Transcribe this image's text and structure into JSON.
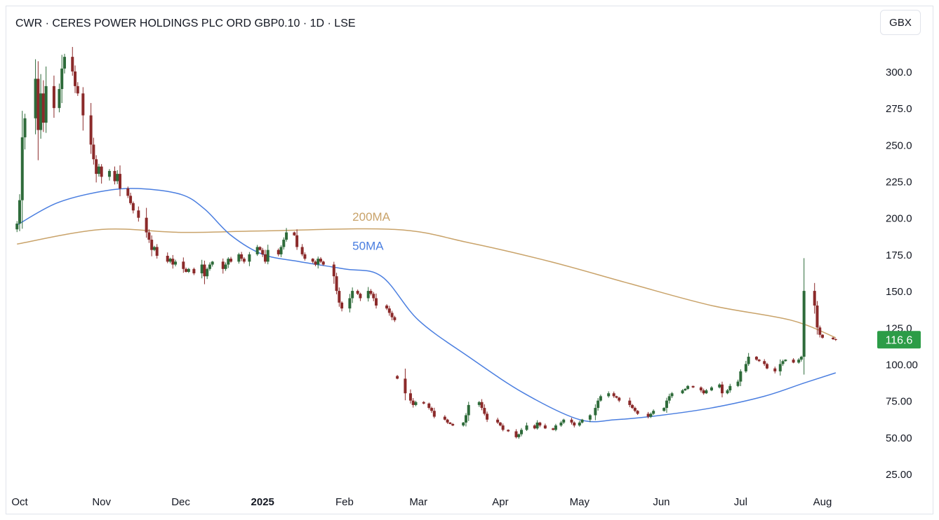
{
  "chart_data": {
    "type": "candlestick",
    "title": "CWR · CERES POWER HOLDINGS PLC ORD GBP0.10 · 1D · LSE",
    "currency": "GBX",
    "ylim": [
      10,
      320
    ],
    "y_ticks": [
      "25.00",
      "50.00",
      "75.00",
      "100.00",
      "125.0",
      "150.0",
      "175.0",
      "200.0",
      "225.0",
      "250.0",
      "275.0",
      "300.0"
    ],
    "y_tick_values": [
      25,
      50,
      75,
      100,
      125,
      150,
      175,
      200,
      225,
      250,
      275,
      300
    ],
    "x_ticks": [
      {
        "label": "Oct",
        "date": "2024-10-01",
        "bold": false
      },
      {
        "label": "Nov",
        "date": "2024-11-01",
        "bold": false
      },
      {
        "label": "Dec",
        "date": "2024-12-01",
        "bold": false
      },
      {
        "label": "2025",
        "date": "2025-01-01",
        "bold": true
      },
      {
        "label": "Feb",
        "date": "2025-02-01",
        "bold": false
      },
      {
        "label": "Mar",
        "date": "2025-03-01",
        "bold": false
      },
      {
        "label": "Apr",
        "date": "2025-04-01",
        "bold": false
      },
      {
        "label": "May",
        "date": "2025-05-01",
        "bold": false
      },
      {
        "label": "Jun",
        "date": "2025-06-01",
        "bold": false
      },
      {
        "label": "Jul",
        "date": "2025-07-01",
        "bold": false
      },
      {
        "label": "Aug",
        "date": "2025-08-01",
        "bold": false
      }
    ],
    "last_price": "116.6",
    "last_price_value": 116.6,
    "colors": {
      "up": "#2e6b3a",
      "down": "#8b2a2a",
      "ma50": "#4a7ee0",
      "ma200": "#c9a36a",
      "last_price_bg": "#2c9c47",
      "text": "#131722",
      "frame": "#e0e3eb"
    },
    "grid": false,
    "candle_segments": [
      {
        "start": "2024-09-30",
        "end": "2025-02-20",
        "closes": [
          196,
          212,
          255,
          268,
          295,
          260,
          285,
          265,
          290,
          275,
          288,
          302,
          310,
          300,
          290,
          285,
          270,
          250,
          240,
          230,
          235,
          228,
          232,
          225,
          230,
          220,
          215,
          210,
          205,
          200,
          190,
          185,
          178,
          180,
          174,
          170,
          172,
          168,
          170,
          165,
          163,
          165,
          162,
          168,
          160,
          165,
          168,
          170,
          165,
          168,
          172,
          170,
          175,
          172,
          170,
          175,
          180,
          178,
          175,
          170,
          178,
          175,
          180,
          185,
          190,
          188,
          180,
          175,
          172,
          170,
          168,
          172,
          170,
          168,
          160,
          150,
          142,
          138,
          145,
          150,
          148,
          145,
          150,
          148,
          145,
          140,
          138,
          135,
          132,
          130
        ]
      },
      {
        "start": "2025-02-21",
        "end": "2025-08-06",
        "closes": [
          90,
          80,
          75,
          72,
          74,
          73,
          70,
          68,
          64,
          62,
          60,
          59,
          58,
          60,
          65,
          72,
          74,
          70,
          66,
          62,
          60,
          58,
          55,
          54,
          50,
          52,
          55,
          58,
          56,
          60,
          58,
          56,
          55,
          58,
          60,
          62,
          60,
          58,
          60,
          62,
          65,
          70,
          75,
          78,
          80,
          78,
          77,
          75,
          72,
          70,
          68,
          66,
          64,
          66,
          68,
          70,
          75,
          78,
          80,
          82,
          83,
          85,
          84,
          82,
          80,
          82,
          84,
          86,
          80,
          82,
          85,
          88,
          95,
          100,
          105,
          103,
          102,
          100,
          97,
          95,
          100,
          102,
          103,
          101,
          103,
          105,
          150,
          140,
          125,
          120,
          118,
          117,
          116.6
        ]
      }
    ],
    "ma50": {
      "label": "50MA",
      "label_date": "2025-02-04",
      "label_value": 178,
      "points": [
        [
          "2024-09-30",
          195
        ],
        [
          "2024-10-15",
          210
        ],
        [
          "2024-11-01",
          218
        ],
        [
          "2024-11-15",
          220
        ],
        [
          "2024-12-01",
          216
        ],
        [
          "2024-12-10",
          206
        ],
        [
          "2024-12-20",
          188
        ],
        [
          "2025-01-01",
          175
        ],
        [
          "2025-01-15",
          170
        ],
        [
          "2025-02-01",
          165
        ],
        [
          "2025-02-15",
          160
        ],
        [
          "2025-03-01",
          130
        ],
        [
          "2025-03-20",
          105
        ],
        [
          "2025-04-10",
          80
        ],
        [
          "2025-05-01",
          62
        ],
        [
          "2025-05-15",
          62
        ],
        [
          "2025-06-01",
          65
        ],
        [
          "2025-06-20",
          70
        ],
        [
          "2025-07-10",
          78
        ],
        [
          "2025-07-25",
          87
        ],
        [
          "2025-08-06",
          94
        ]
      ]
    },
    "ma200": {
      "label": "200MA",
      "label_date": "2025-02-04",
      "label_value": 198,
      "points": [
        [
          "2024-09-30",
          182
        ],
        [
          "2024-11-01",
          192
        ],
        [
          "2024-12-01",
          190
        ],
        [
          "2025-01-01",
          191
        ],
        [
          "2025-02-20",
          192
        ],
        [
          "2025-03-20",
          183
        ],
        [
          "2025-04-20",
          170
        ],
        [
          "2025-05-20",
          155
        ],
        [
          "2025-06-20",
          140
        ],
        [
          "2025-07-20",
          130
        ],
        [
          "2025-08-06",
          118
        ]
      ]
    }
  }
}
